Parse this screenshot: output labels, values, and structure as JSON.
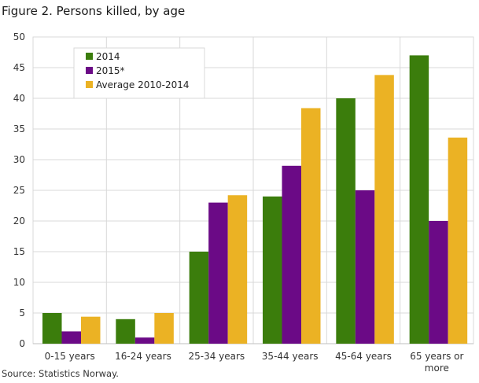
{
  "chart_data": {
    "type": "bar",
    "title": "Figure 2. Persons killed, by age",
    "source": "Source: Statistics Norway.",
    "categories": [
      "0-15 years",
      "16-24 years",
      "25-34 years",
      "35-44 years",
      "45-64 years",
      "65 years or more"
    ],
    "series": [
      {
        "name": "2014",
        "color": "#3b7d0c",
        "values": [
          5,
          4,
          15,
          24,
          40,
          47
        ]
      },
      {
        "name": "2015*",
        "color": "#6b0a86",
        "values": [
          2,
          1,
          23,
          29,
          25,
          20
        ]
      },
      {
        "name": "Average 2010-2014",
        "color": "#ebb224",
        "values": [
          4.4,
          5,
          24.2,
          38.4,
          43.8,
          33.6
        ]
      }
    ],
    "ylim": [
      0,
      50
    ],
    "yticks": [
      0,
      5,
      10,
      15,
      20,
      25,
      30,
      35,
      40,
      45,
      50
    ],
    "grid": true,
    "legend_position": "top-left"
  }
}
